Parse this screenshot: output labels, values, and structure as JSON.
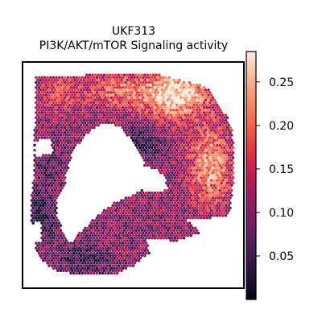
{
  "chart_data": {
    "type": "heatmap",
    "title_lines": [
      "UKF313",
      "PI3K/AKT/mTOR Signaling activity"
    ],
    "xlabel": "",
    "ylabel": "",
    "grid": false,
    "colormap": "rocket",
    "color_range": [
      0.0,
      0.285
    ],
    "colorbar": {
      "ticks": [
        0.05,
        0.1,
        0.15,
        0.2,
        0.25
      ],
      "tick_labels": [
        "0.05",
        "0.10",
        "0.15",
        "0.20",
        "0.25"
      ]
    },
    "colors": {
      "frame": "#000000",
      "background": "#ffffff"
    }
  }
}
